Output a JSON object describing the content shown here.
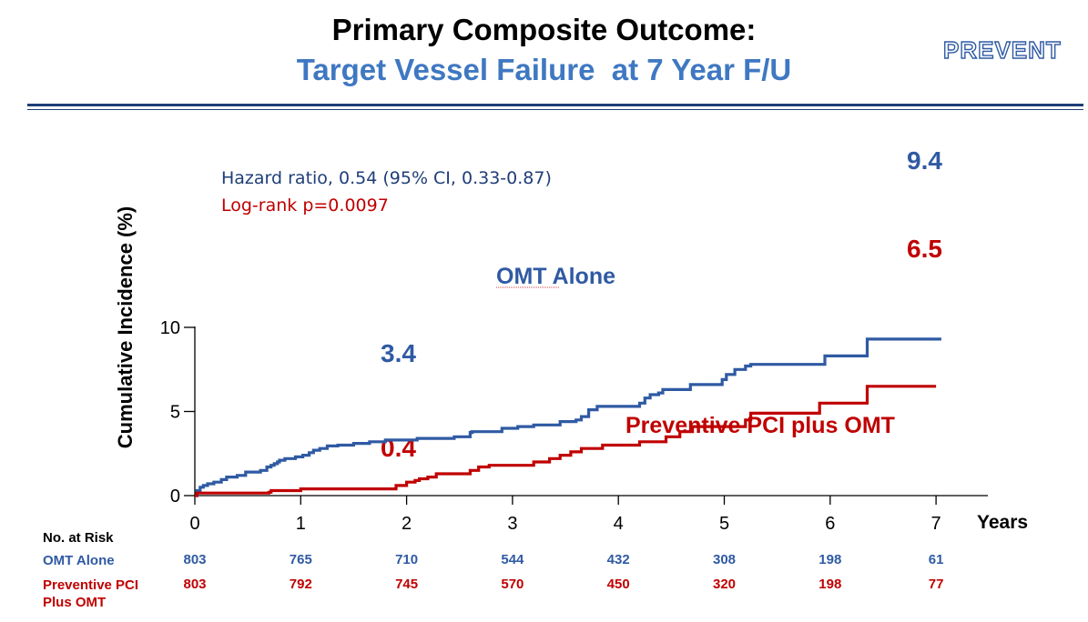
{
  "header": {
    "title": "Primary Composite Outcome:",
    "subtitle": "Target Vessel Failure  at 7 Year F/U",
    "logo_text": "PREVENT"
  },
  "colors": {
    "omt": "#2f5aa3",
    "pci": "#c00000",
    "subtitle": "#3f78c2"
  },
  "chart_data": {
    "type": "line",
    "step": true,
    "ylabel": "Cumulative Incidence (%)",
    "xlabel": "Years",
    "x_ticks": [
      "0",
      "1",
      "2",
      "3",
      "4",
      "5",
      "6",
      "7"
    ],
    "y_ticks": [
      "0",
      "5",
      "10"
    ],
    "xlim": [
      0,
      7.5
    ],
    "ylim": [
      0,
      10
    ],
    "annotations": {
      "hazard_ratio": "Hazard ratio, 0.54 (95% CI, 0.33-0.87)",
      "log_rank": "Log-rank p=0.0097"
    },
    "series": [
      {
        "name": "OMT Alone",
        "color": "#2f5aa3",
        "end_label": "9.4",
        "mid_label": "3.4",
        "points": [
          [
            0,
            0
          ],
          [
            0.02,
            0.3
          ],
          [
            0.05,
            0.5
          ],
          [
            0.08,
            0.6
          ],
          [
            0.12,
            0.7
          ],
          [
            0.18,
            0.8
          ],
          [
            0.25,
            0.95
          ],
          [
            0.3,
            1.1
          ],
          [
            0.4,
            1.2
          ],
          [
            0.48,
            1.4
          ],
          [
            0.62,
            1.5
          ],
          [
            0.68,
            1.7
          ],
          [
            0.72,
            1.8
          ],
          [
            0.75,
            1.9
          ],
          [
            0.78,
            2.0
          ],
          [
            0.8,
            2.1
          ],
          [
            0.85,
            2.2
          ],
          [
            0.95,
            2.3
          ],
          [
            1.02,
            2.4
          ],
          [
            1.08,
            2.55
          ],
          [
            1.12,
            2.7
          ],
          [
            1.18,
            2.8
          ],
          [
            1.25,
            2.95
          ],
          [
            1.35,
            3.0
          ],
          [
            1.5,
            3.1
          ],
          [
            1.65,
            3.2
          ],
          [
            1.8,
            3.3
          ],
          [
            1.95,
            3.3
          ],
          [
            2.1,
            3.4
          ],
          [
            2.45,
            3.5
          ],
          [
            2.6,
            3.75
          ],
          [
            2.62,
            3.8
          ],
          [
            2.6,
            3.8
          ],
          [
            2.9,
            4.0
          ],
          [
            3.05,
            4.1
          ],
          [
            3.2,
            4.2
          ],
          [
            3.45,
            4.4
          ],
          [
            3.6,
            4.5
          ],
          [
            3.65,
            4.7
          ],
          [
            3.72,
            5.1
          ],
          [
            3.8,
            5.3
          ],
          [
            4.2,
            5.5
          ],
          [
            4.25,
            5.8
          ],
          [
            4.3,
            6.0
          ],
          [
            4.38,
            6.1
          ],
          [
            4.42,
            6.3
          ],
          [
            4.68,
            6.6
          ],
          [
            4.98,
            6.9
          ],
          [
            5.02,
            7.2
          ],
          [
            5.1,
            7.5
          ],
          [
            5.2,
            7.7
          ],
          [
            5.25,
            7.8
          ],
          [
            5.95,
            8.3
          ],
          [
            6.35,
            9.3
          ],
          [
            7.05,
            9.3
          ]
        ]
      },
      {
        "name": "Preventive PCI plus OMT",
        "color": "#c00000",
        "end_label": "6.5",
        "mid_label": "0.4",
        "points": [
          [
            0,
            0
          ],
          [
            0.02,
            0.15
          ],
          [
            0.7,
            0.2
          ],
          [
            0.72,
            0.3
          ],
          [
            1.0,
            0.4
          ],
          [
            1.85,
            0.4
          ],
          [
            1.9,
            0.6
          ],
          [
            2.0,
            0.8
          ],
          [
            2.08,
            0.9
          ],
          [
            2.12,
            1.0
          ],
          [
            2.2,
            1.1
          ],
          [
            2.28,
            1.3
          ],
          [
            2.6,
            1.5
          ],
          [
            2.68,
            1.7
          ],
          [
            2.78,
            1.8
          ],
          [
            3.2,
            2.0
          ],
          [
            3.35,
            2.2
          ],
          [
            3.45,
            2.4
          ],
          [
            3.55,
            2.6
          ],
          [
            3.65,
            2.8
          ],
          [
            3.85,
            3.0
          ],
          [
            4.2,
            3.2
          ],
          [
            4.45,
            3.5
          ],
          [
            4.58,
            3.8
          ],
          [
            4.7,
            4.1
          ],
          [
            5.2,
            4.5
          ],
          [
            5.25,
            4.9
          ],
          [
            5.9,
            5.5
          ],
          [
            6.35,
            6.5
          ],
          [
            7.0,
            6.5
          ]
        ]
      }
    ]
  },
  "labels": {
    "omt": "OMT Alone",
    "pci": "Preventive PCI plus OMT"
  },
  "risk_table": {
    "title": "No. at Risk",
    "rows": [
      {
        "label": "OMT Alone",
        "values": [
          "803",
          "765",
          "710",
          "544",
          "432",
          "308",
          "198",
          "61"
        ]
      },
      {
        "label": "Preventive PCI\nPlus OMT",
        "values": [
          "803",
          "792",
          "745",
          "570",
          "450",
          "320",
          "198",
          "77"
        ]
      }
    ]
  }
}
